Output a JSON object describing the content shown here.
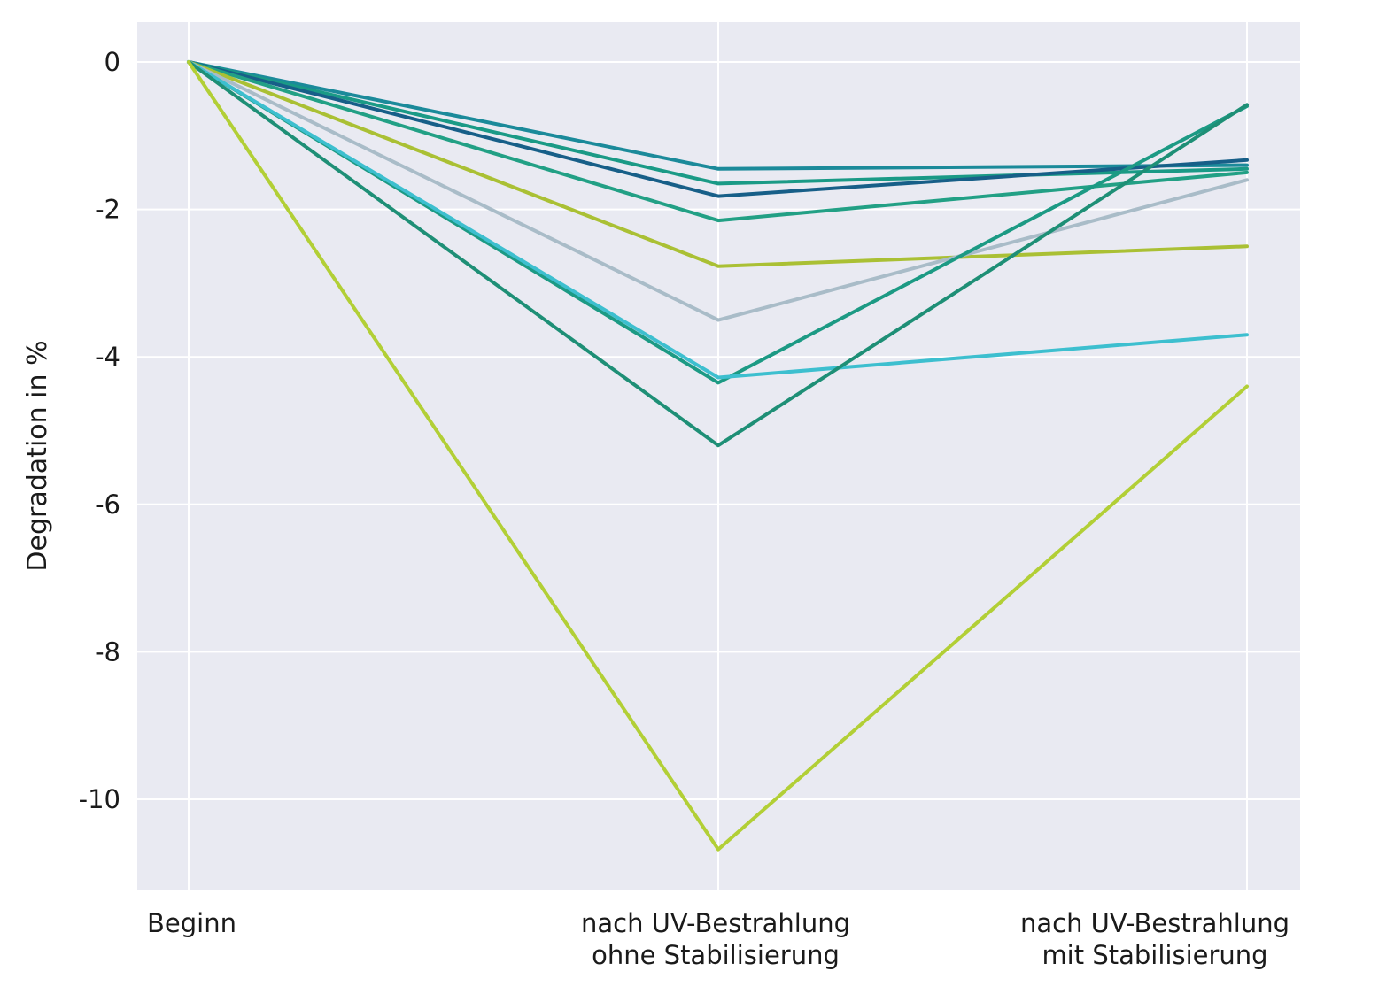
{
  "chart_data": {
    "type": "line",
    "title": "",
    "xlabel": "",
    "ylabel": "Degradation in %",
    "categories": [
      [
        "Beginn"
      ],
      [
        "nach UV-Bestrahlung",
        "ohne Stabilisierung"
      ],
      [
        "nach UV-Bestrahlung",
        "mit Stabilisierung"
      ]
    ],
    "ylim": [
      -11.2,
      0.55
    ],
    "yticks": [
      0,
      -2,
      -4,
      -6,
      -8,
      -10
    ],
    "grid": true,
    "legend": "none",
    "background": "#e9eaf2",
    "gridColor": "#ffffff",
    "series": [
      {
        "color": "#1b8a9a",
        "values": [
          0,
          -1.45,
          -1.4
        ]
      },
      {
        "color": "#1a9a86",
        "values": [
          0,
          -1.65,
          -1.45
        ]
      },
      {
        "color": "#175f88",
        "values": [
          0,
          -1.82,
          -1.33
        ]
      },
      {
        "color": "#22a085",
        "values": [
          0,
          -2.15,
          -1.5
        ]
      },
      {
        "color": "#aac034",
        "values": [
          0,
          -2.77,
          -2.5
        ]
      },
      {
        "color": "#a9bcc8",
        "values": [
          0,
          -3.5,
          -1.6
        ]
      },
      {
        "color": "#1c9a84",
        "values": [
          0,
          -4.35,
          -0.6
        ]
      },
      {
        "color": "#3dbfcf",
        "values": [
          0,
          -4.28,
          -3.7
        ]
      },
      {
        "color": "#1e8f76",
        "values": [
          0,
          -5.2,
          -0.58
        ]
      },
      {
        "color": "#b2cf36",
        "values": [
          0,
          -10.68,
          -4.4
        ]
      }
    ]
  }
}
